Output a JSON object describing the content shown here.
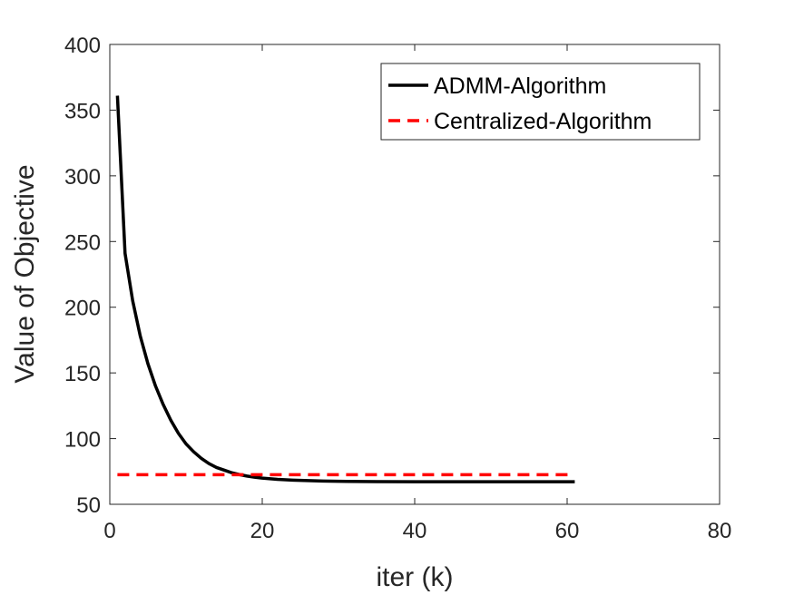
{
  "chart_data": {
    "type": "line",
    "xlabel": "iter (k)",
    "ylabel": "Value of Objective",
    "xlim": [
      0,
      80
    ],
    "ylim": [
      50,
      400
    ],
    "xticks": [
      "0",
      "20",
      "40",
      "60",
      "80"
    ],
    "yticks": [
      "50",
      "100",
      "150",
      "200",
      "250",
      "300",
      "350",
      "400"
    ],
    "grid": false,
    "legend_position": "top-right",
    "series": [
      {
        "name": "ADMM-Algorithm",
        "style": "solid",
        "color": "#000000",
        "x": [
          1,
          2,
          3,
          4,
          5,
          6,
          7,
          8,
          9,
          10,
          11,
          12,
          13,
          14,
          15,
          16,
          17,
          18,
          19,
          20,
          22,
          24,
          26,
          28,
          30,
          35,
          40,
          45,
          50,
          55,
          61
        ],
        "y": [
          361,
          241,
          205,
          178,
          157,
          140,
          126,
          114,
          104,
          96,
          90,
          85,
          81,
          78,
          76,
          74,
          72.6,
          71.5,
          70.6,
          69.9,
          69,
          68.4,
          68,
          67.7,
          67.5,
          67.3,
          67.2,
          67.2,
          67.2,
          67.2,
          67.2
        ]
      },
      {
        "name": "Centralized-Algorithm",
        "style": "dashed",
        "color": "#ff0000",
        "x": [
          1,
          61
        ],
        "y": [
          72.5,
          72.5
        ]
      }
    ]
  }
}
